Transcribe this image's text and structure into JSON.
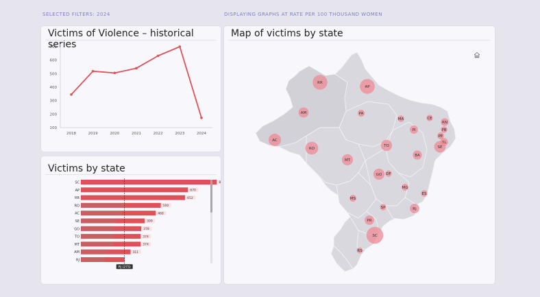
{
  "header": {
    "filters_label": "SELECTED FILTERS: 2024",
    "rate_label": "DISPLAYING GRAPHS AT RATE PER 100 THOUSAND WOMEN"
  },
  "historical": {
    "title": "Victims of Violence – historical series"
  },
  "by_state": {
    "title": "Victims by state"
  },
  "map": {
    "title": "Map of victims by state",
    "home_icon": "home-icon",
    "states": [
      {
        "code": "RR",
        "v": 652
      },
      {
        "code": "AP",
        "v": 670
      },
      {
        "code": "AM",
        "v": 311
      },
      {
        "code": "PA",
        "v": 150
      },
      {
        "code": "MA",
        "v": 130
      },
      {
        "code": "CE",
        "v": 120
      },
      {
        "code": "RN",
        "v": 180
      },
      {
        "code": "PB",
        "v": 130
      },
      {
        "code": "PI",
        "v": 200
      },
      {
        "code": "PE",
        "v": 140
      },
      {
        "code": "AL",
        "v": 190
      },
      {
        "code": "SE",
        "v": 399
      },
      {
        "code": "AC",
        "v": 468
      },
      {
        "code": "RO",
        "v": 500
      },
      {
        "code": "TO",
        "v": 374
      },
      {
        "code": "BA",
        "v": 250
      },
      {
        "code": "MT",
        "v": 374
      },
      {
        "code": "GO",
        "v": 378
      },
      {
        "code": "DF",
        "v": 120
      },
      {
        "code": "MG",
        "v": 140
      },
      {
        "code": "ES",
        "v": 130
      },
      {
        "code": "RJ",
        "v": 273
      },
      {
        "code": "SP",
        "v": 120
      },
      {
        "code": "MS",
        "v": 140
      },
      {
        "code": "PR",
        "v": 270
      },
      {
        "code": "SC",
        "v": 850
      },
      {
        "code": "RS",
        "v": 110
      }
    ]
  },
  "colors": {
    "accent": "#e05058",
    "bar": "#e05058",
    "bar_dark": "#b07070",
    "bubble": "#ee8a94"
  },
  "chart_data": [
    {
      "type": "line",
      "x": [
        "2018",
        "2019",
        "2020",
        "2021",
        "2022",
        "2023",
        "2024"
      ],
      "series": [
        {
          "values": [
            345,
            518,
            505,
            540,
            632,
            700,
            172
          ]
        }
      ],
      "yticks": [
        "700",
        "600",
        "500",
        "400",
        "300",
        "200",
        "100"
      ],
      "ylim": [
        100,
        700
      ],
      "grid": false
    },
    {
      "type": "bar",
      "orientation": "horizontal",
      "categories": [
        "SC",
        "AP",
        "RR",
        "RO",
        "AC",
        "SE",
        "GO",
        "TO",
        "MT",
        "AM",
        "RJ"
      ],
      "values": [
        850,
        670,
        652,
        500,
        468,
        399,
        378,
        374,
        374,
        311,
        273
      ],
      "labels": [
        "850",
        "670",
        "652",
        "500",
        "468",
        "399",
        "378",
        "374",
        "374",
        "311",
        ""
      ],
      "xlim": [
        0,
        900
      ],
      "reference_line": 273,
      "tooltip": "RJ (273)"
    }
  ]
}
